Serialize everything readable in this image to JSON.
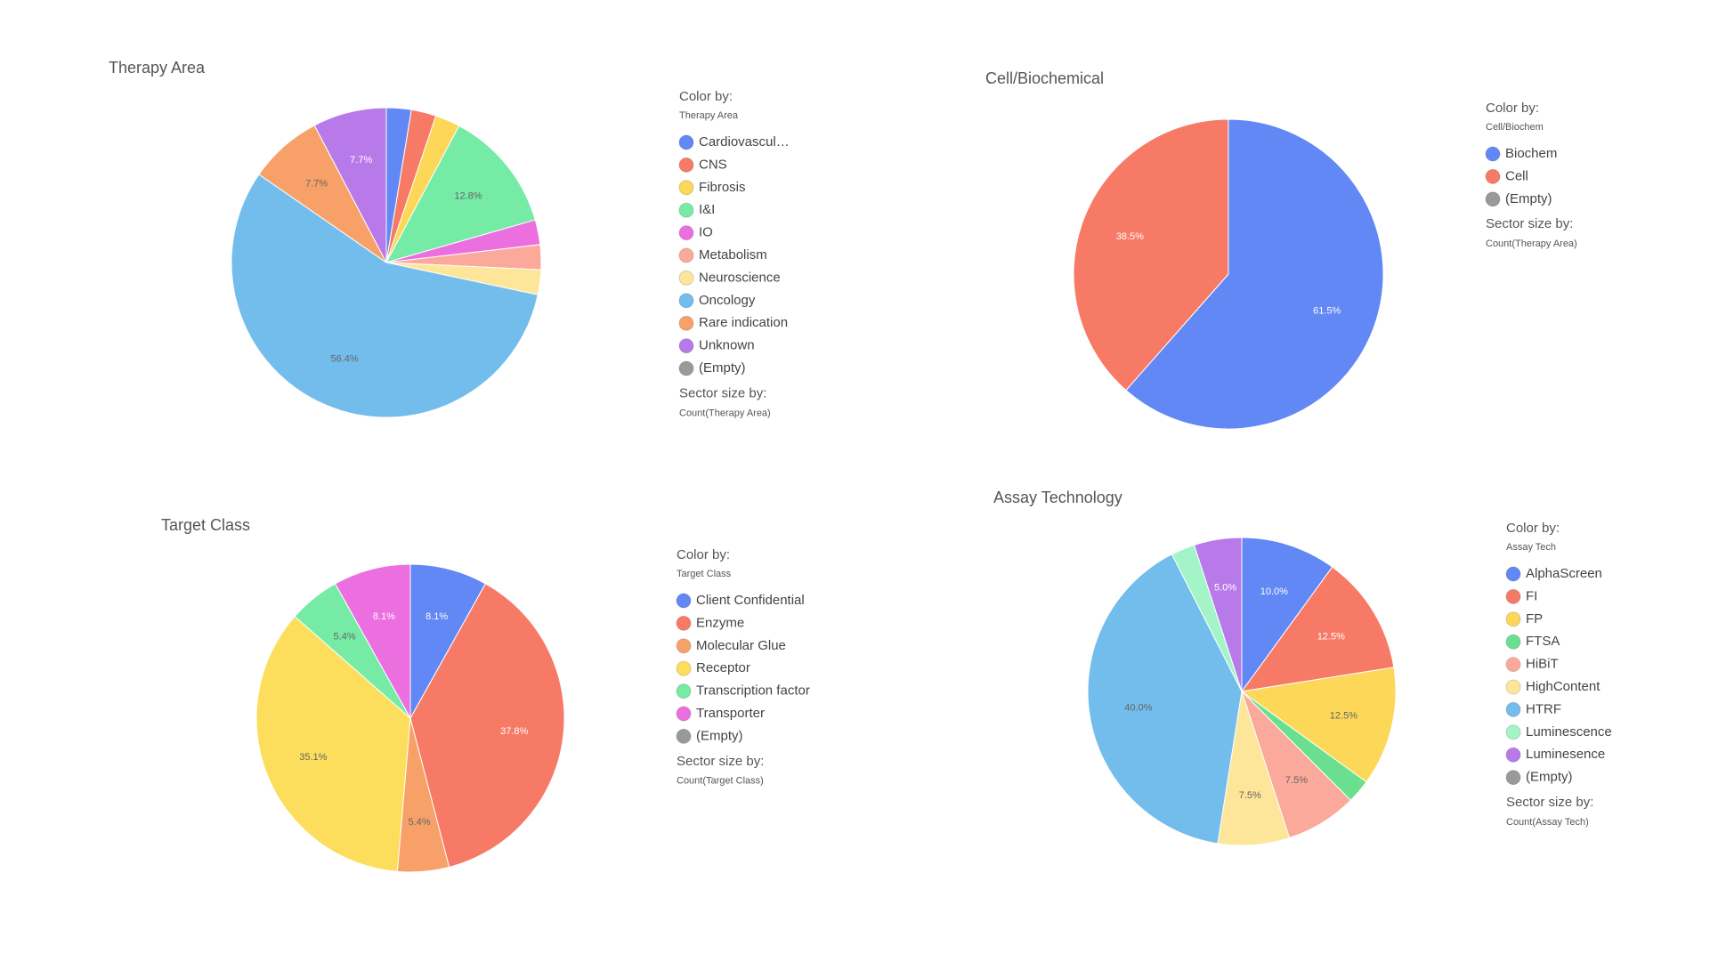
{
  "chart_data": [
    {
      "type": "pie",
      "title": "Therapy Area",
      "categories": [
        "Cardiovascul…",
        "CNS",
        "Fibrosis",
        "I&I",
        "IO",
        "Metabolism",
        "Neuroscience",
        "Oncology",
        "Rare indication",
        "Unknown",
        "(Empty)"
      ],
      "values": [
        2.6,
        2.6,
        2.6,
        12.8,
        2.6,
        2.6,
        2.6,
        56.4,
        7.7,
        7.7,
        0
      ],
      "value_labels": [
        null,
        null,
        null,
        "12.8%",
        null,
        null,
        null,
        "56.4%",
        "7.7%",
        "7.7%",
        null
      ],
      "colors": [
        "#6188f5",
        "#f77a66",
        "#fcd758",
        "#76eba6",
        "#ec6fe0",
        "#fba99b",
        "#fde59a",
        "#73bdec",
        "#f7a168",
        "#b97ae9",
        "#999999"
      ],
      "legend_title": "Color by:",
      "legend_field": "Therapy Area",
      "size_title": "Sector size by:",
      "size_field": "Count(Therapy Area)"
    },
    {
      "type": "pie",
      "title": "Cell/Biochemical",
      "categories": [
        "Biochem",
        "Cell",
        "(Empty)"
      ],
      "values": [
        61.5,
        38.5,
        0
      ],
      "value_labels": [
        "61.5%",
        "38.5%",
        null
      ],
      "colors": [
        "#6188f5",
        "#f77a66",
        "#999999"
      ],
      "legend_title": "Color by:",
      "legend_field": "Cell/Biochem",
      "size_title": "Sector size by:",
      "size_field": "Count(Therapy Area)"
    },
    {
      "type": "pie",
      "title": "Target Class",
      "categories": [
        "Client Confidential",
        "Enzyme",
        "Molecular Glue",
        "Receptor",
        "Transcription factor",
        "Transporter",
        "(Empty)"
      ],
      "values": [
        8.1,
        37.8,
        5.4,
        35.1,
        5.4,
        8.1,
        0
      ],
      "value_labels": [
        "8.1%",
        "37.8%",
        "5.4%",
        "35.1%",
        "5.4%",
        "8.1%",
        null
      ],
      "colors": [
        "#6188f5",
        "#f77a66",
        "#f7a168",
        "#fddd5c",
        "#76eba6",
        "#ec6fe0",
        "#999999"
      ],
      "legend_title": "Color by:",
      "legend_field": "Target Class",
      "size_title": "Sector size by:",
      "size_field": "Count(Target Class)"
    },
    {
      "type": "pie",
      "title": "Assay Technology",
      "categories": [
        "AlphaScreen",
        "FI",
        "FP",
        "FTSA",
        "HiBiT",
        "HighContent",
        "HTRF",
        "Luminescence",
        "Luminesence",
        "(Empty)"
      ],
      "values": [
        10.0,
        12.5,
        12.5,
        2.5,
        7.5,
        7.5,
        40.0,
        2.5,
        5.0,
        0
      ],
      "value_labels": [
        "10.0%",
        "12.5%",
        "12.5%",
        null,
        "7.5%",
        "7.5%",
        "40.0%",
        null,
        "5.0%",
        null
      ],
      "colors": [
        "#6188f5",
        "#f77a66",
        "#fcd758",
        "#6ae08e",
        "#fba99b",
        "#fde59a",
        "#73bdec",
        "#a3f5c7",
        "#b97ae9",
        "#999999"
      ],
      "legend_title": "Color by:",
      "legend_field": "Assay Tech",
      "size_title": "Sector size by:",
      "size_field": "Count(Assay Tech)"
    }
  ]
}
